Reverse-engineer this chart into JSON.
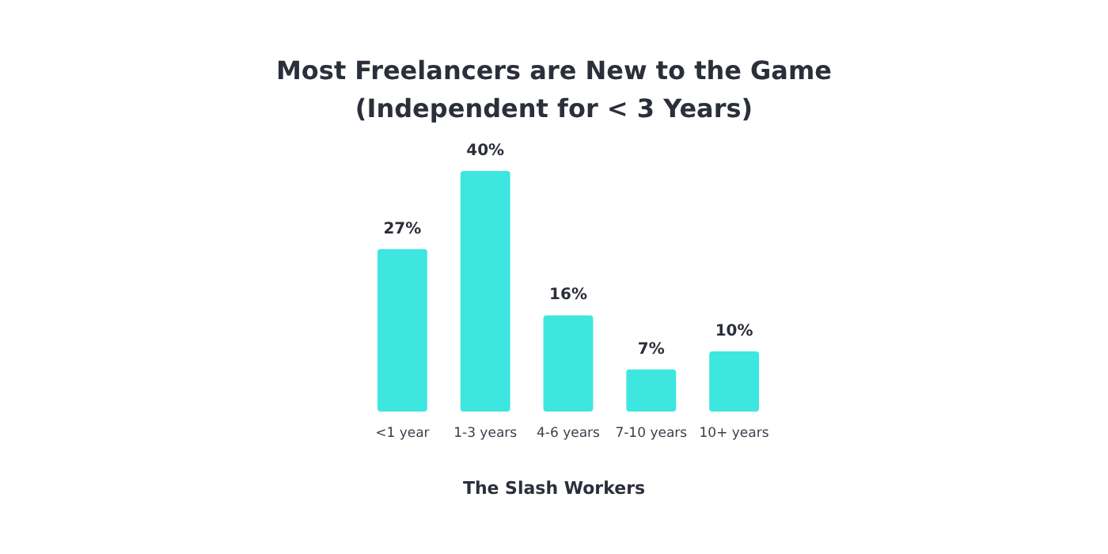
{
  "chart_data": {
    "type": "bar",
    "title": "Most Freelancers are New to the Game\n(Independent for < 3 Years)",
    "categories": [
      "<1 year",
      "1-3 years",
      "4-6 years",
      "7-10 years",
      "10+ years"
    ],
    "values": [
      27,
      40,
      16,
      7,
      10
    ],
    "color": "#3ee6e0",
    "data_labels": true,
    "value_labels": [
      "27%",
      "40%",
      "16%",
      "7%",
      "10%"
    ],
    "annotations": [
      "The Slash Workers"
    ]
  }
}
